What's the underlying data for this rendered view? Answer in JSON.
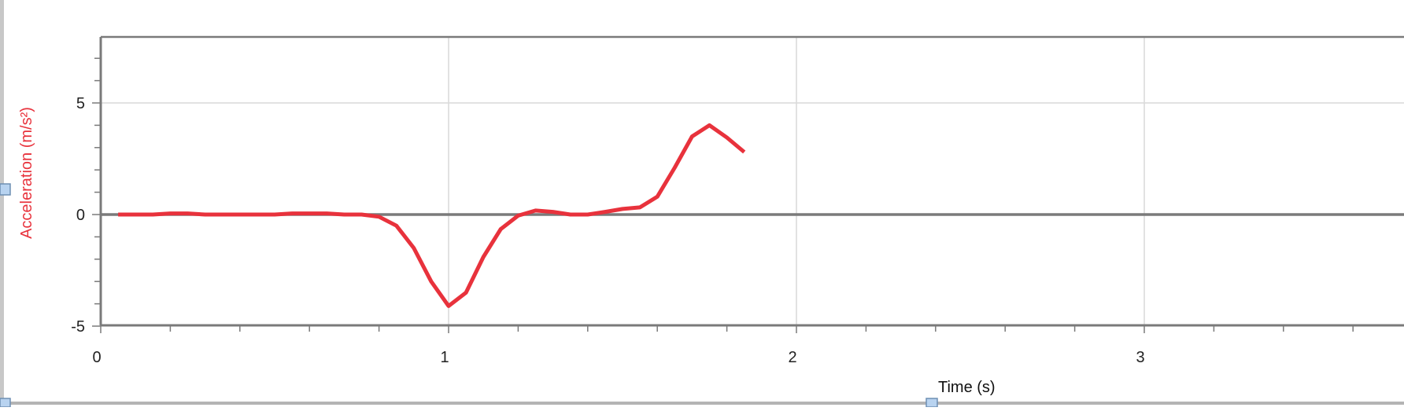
{
  "chart_data": {
    "type": "line",
    "title": "",
    "xlabel": "Time (s)",
    "ylabel": "Acceleration (m/s²)",
    "xlim": [
      0,
      3.8
    ],
    "ylim": [
      -5,
      8
    ],
    "x_major_ticks": [
      0,
      1,
      2,
      3
    ],
    "x_tick_labels": [
      "0",
      "1",
      "2",
      "3"
    ],
    "y_major_ticks": [
      -5,
      0,
      5
    ],
    "y_tick_labels": [
      "-5",
      "0",
      "5"
    ],
    "grid": true,
    "legend": "none",
    "series": [
      {
        "color": "#e8323c",
        "x": [
          0.05,
          0.1,
          0.15,
          0.2,
          0.25,
          0.3,
          0.35,
          0.4,
          0.45,
          0.5,
          0.55,
          0.6,
          0.65,
          0.7,
          0.75,
          0.8,
          0.85,
          0.9,
          0.95,
          1.0,
          1.05,
          1.1,
          1.15,
          1.2,
          1.25,
          1.3,
          1.35,
          1.4,
          1.45,
          1.5,
          1.55,
          1.6,
          1.65,
          1.7,
          1.75,
          1.8,
          1.85
        ],
        "y": [
          0.0,
          0.0,
          0.0,
          0.05,
          0.05,
          0.0,
          0.0,
          0.0,
          0.0,
          0.0,
          0.05,
          0.05,
          0.05,
          0.0,
          0.0,
          -0.1,
          -0.5,
          -1.5,
          -3.0,
          -4.1,
          -3.5,
          -1.9,
          -0.65,
          -0.05,
          0.18,
          0.12,
          0.0,
          0.0,
          0.12,
          0.25,
          0.32,
          0.8,
          2.1,
          3.5,
          4.0,
          3.45,
          2.8
        ]
      }
    ]
  },
  "colors": {
    "series": "#e8323c",
    "ylabel": "#e8323c",
    "grid": "#d9d9d9",
    "axis": "#7a7a7a",
    "zero_line": "#7a7a7a"
  }
}
